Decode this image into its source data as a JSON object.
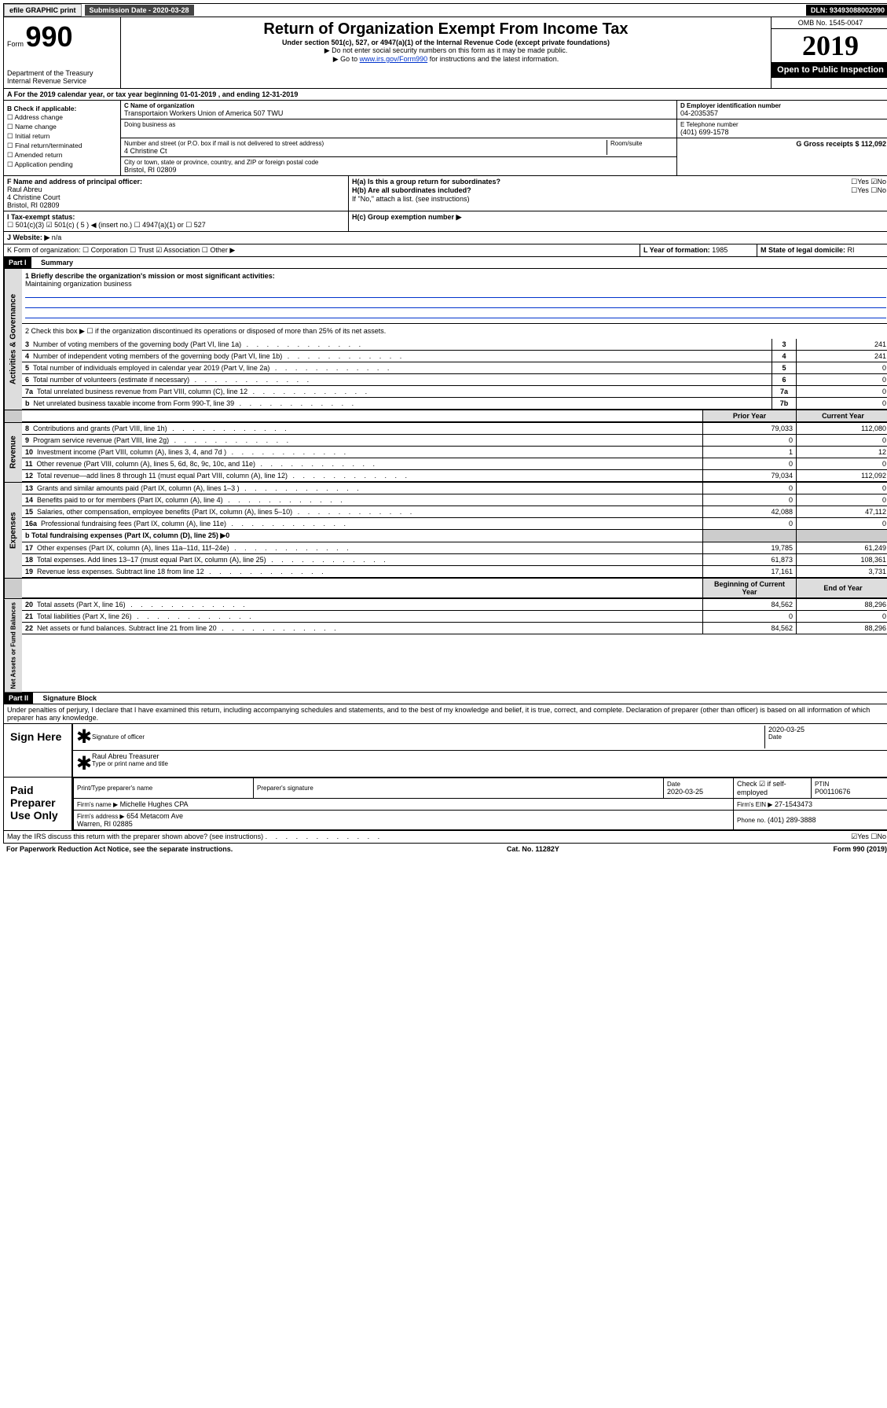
{
  "topbar": {
    "efile": "efile GRAPHIC print",
    "submission": "Submission Date - 2020-03-28",
    "dln": "DLN: 93493088002090"
  },
  "header": {
    "form_label": "Form",
    "form_no": "990",
    "title": "Return of Organization Exempt From Income Tax",
    "subtitle": "Under section 501(c), 527, or 4947(a)(1) of the Internal Revenue Code (except private foundations)",
    "note1": "▶ Do not enter social security numbers on this form as it may be made public.",
    "note2_pre": "▶ Go to ",
    "note2_link": "www.irs.gov/Form990",
    "note2_post": " for instructions and the latest information.",
    "dept": "Department of the Treasury\nInternal Revenue Service",
    "omb": "OMB No. 1545-0047",
    "year": "2019",
    "open": "Open to Public Inspection"
  },
  "line_a": "A For the 2019 calendar year, or tax year beginning 01-01-2019   , and ending 12-31-2019",
  "section_b": {
    "label": "B Check if applicable:",
    "opts": [
      "☐ Address change",
      "☐ Name change",
      "☐ Initial return",
      "☐ Final return/terminated",
      "☐ Amended return",
      "☐ Application pending"
    ]
  },
  "org": {
    "name_label": "C Name of organization",
    "name": "Transportaion Workers Union of America 507 TWU",
    "dba_label": "Doing business as",
    "addr_label": "Number and street (or P.O. box if mail is not delivered to street address)",
    "room_label": "Room/suite",
    "addr": "4 Christine Ct",
    "city_label": "City or town, state or province, country, and ZIP or foreign postal code",
    "city": "Bristol, RI  02809"
  },
  "right_info": {
    "d_label": "D Employer identification number",
    "ein": "04-2035357",
    "e_label": "E Telephone number",
    "phone": "(401) 699-1578",
    "g_label": "G Gross receipts $ 112,092"
  },
  "officer": {
    "label": "F  Name and address of principal officer:",
    "name": "Raul Abreu",
    "addr": "4 Christine Court\nBristol, RI  02809"
  },
  "h_section": {
    "a": "H(a)  Is this a group return for subordinates?",
    "a_val": "☐Yes ☑No",
    "b": "H(b)  Are all subordinates included?",
    "b_val": "☐Yes ☐No",
    "b_note": "If \"No,\" attach a list. (see instructions)",
    "c": "H(c)  Group exemption number ▶"
  },
  "tax_status": {
    "label": "I   Tax-exempt status:",
    "opts": "☐ 501(c)(3)   ☑ 501(c) ( 5 ) ◀ (insert no.)    ☐ 4947(a)(1) or  ☐ 527"
  },
  "website": {
    "label": "J   Website: ▶",
    "val": "n/a"
  },
  "line_k": "K Form of organization:  ☐ Corporation  ☐ Trust  ☑ Association  ☐ Other ▶",
  "line_l": {
    "label": "L Year of formation: ",
    "val": "1985"
  },
  "line_m": {
    "label": "M State of legal domicile: ",
    "val": "RI"
  },
  "part1": {
    "header": "Part I",
    "title": "Summary",
    "q1": "1  Briefly describe the organization's mission or most significant activities:",
    "q1_ans": "Maintaining organization business",
    "q2": "2   Check this box ▶ ☐  if the organization discontinued its operations or disposed of more than 25% of its net assets.",
    "rows_single": [
      {
        "n": "3",
        "t": "Number of voting members of the governing body (Part VI, line 1a)",
        "box": "3",
        "v": "241"
      },
      {
        "n": "4",
        "t": "Number of independent voting members of the governing body (Part VI, line 1b)",
        "box": "4",
        "v": "241"
      },
      {
        "n": "5",
        "t": "Total number of individuals employed in calendar year 2019 (Part V, line 2a)",
        "box": "5",
        "v": "0"
      },
      {
        "n": "6",
        "t": "Total number of volunteers (estimate if necessary)",
        "box": "6",
        "v": "0"
      },
      {
        "n": "7a",
        "t": "Total unrelated business revenue from Part VIII, column (C), line 12",
        "box": "7a",
        "v": "0"
      },
      {
        "n": "b",
        "t": "Net unrelated business taxable income from Form 990-T, line 39",
        "box": "7b",
        "v": "0"
      }
    ],
    "col_headers": {
      "prior": "Prior Year",
      "current": "Current Year"
    },
    "revenue": [
      {
        "n": "8",
        "t": "Contributions and grants (Part VIII, line 1h)",
        "p": "79,033",
        "c": "112,080"
      },
      {
        "n": "9",
        "t": "Program service revenue (Part VIII, line 2g)",
        "p": "0",
        "c": "0"
      },
      {
        "n": "10",
        "t": "Investment income (Part VIII, column (A), lines 3, 4, and 7d )",
        "p": "1",
        "c": "12"
      },
      {
        "n": "11",
        "t": "Other revenue (Part VIII, column (A), lines 5, 6d, 8c, 9c, 10c, and 11e)",
        "p": "0",
        "c": "0"
      },
      {
        "n": "12",
        "t": "Total revenue—add lines 8 through 11 (must equal Part VIII, column (A), line 12)",
        "p": "79,034",
        "c": "112,092"
      }
    ],
    "expenses": [
      {
        "n": "13",
        "t": "Grants and similar amounts paid (Part IX, column (A), lines 1–3 )",
        "p": "0",
        "c": "0"
      },
      {
        "n": "14",
        "t": "Benefits paid to or for members (Part IX, column (A), line 4)",
        "p": "0",
        "c": "0"
      },
      {
        "n": "15",
        "t": "Salaries, other compensation, employee benefits (Part IX, column (A), lines 5–10)",
        "p": "42,088",
        "c": "47,112"
      },
      {
        "n": "16a",
        "t": "Professional fundraising fees (Part IX, column (A), line 11e)",
        "p": "0",
        "c": "0"
      }
    ],
    "line_b": "b   Total fundraising expenses (Part IX, column (D), line 25) ▶0",
    "expenses2": [
      {
        "n": "17",
        "t": "Other expenses (Part IX, column (A), lines 11a–11d, 11f–24e)",
        "p": "19,785",
        "c": "61,249"
      },
      {
        "n": "18",
        "t": "Total expenses. Add lines 13–17 (must equal Part IX, column (A), line 25)",
        "p": "61,873",
        "c": "108,361"
      },
      {
        "n": "19",
        "t": "Revenue less expenses. Subtract line 18 from line 12",
        "p": "17,161",
        "c": "3,731"
      }
    ],
    "col_headers2": {
      "begin": "Beginning of Current Year",
      "end": "End of Year"
    },
    "assets": [
      {
        "n": "20",
        "t": "Total assets (Part X, line 16)",
        "p": "84,562",
        "c": "88,296"
      },
      {
        "n": "21",
        "t": "Total liabilities (Part X, line 26)",
        "p": "0",
        "c": "0"
      },
      {
        "n": "22",
        "t": "Net assets or fund balances. Subtract line 21 from line 20",
        "p": "84,562",
        "c": "88,296"
      }
    ]
  },
  "part2": {
    "header": "Part II",
    "title": "Signature Block",
    "decl": "Under penalties of perjury, I declare that I have examined this return, including accompanying schedules and statements, and to the best of my knowledge and belief, it is true, correct, and complete. Declaration of preparer (other than officer) is based on all information of which preparer has any knowledge."
  },
  "sign": {
    "label": "Sign Here",
    "sig_of": "Signature of officer",
    "date": "2020-03-25",
    "date_label": "Date",
    "name": "Raul Abreu  Treasurer",
    "name_label": "Type or print name and title"
  },
  "paid": {
    "label": "Paid Preparer Use Only",
    "h1": "Print/Type preparer's name",
    "h2": "Preparer's signature",
    "h3": "Date",
    "h3v": "2020-03-25",
    "h4": "Check ☑ if self-employed",
    "h5": "PTIN",
    "h5v": "P00110676",
    "firm_name_l": "Firm's name    ▶",
    "firm_name": "Michelle Hughes CPA",
    "firm_ein_l": "Firm's EIN ▶",
    "firm_ein": "27-1543473",
    "firm_addr_l": "Firm's address ▶",
    "firm_addr": "654 Metacom Ave\nWarren, RI  02885",
    "phone_l": "Phone no.",
    "phone": "(401) 289-3888"
  },
  "discuss": {
    "q": "May the IRS discuss this return with the preparer shown above? (see instructions)",
    "a": "☑Yes  ☐No"
  },
  "footer": {
    "left": "For Paperwork Reduction Act Notice, see the separate instructions.",
    "mid": "Cat. No. 11282Y",
    "right": "Form 990 (2019)"
  }
}
